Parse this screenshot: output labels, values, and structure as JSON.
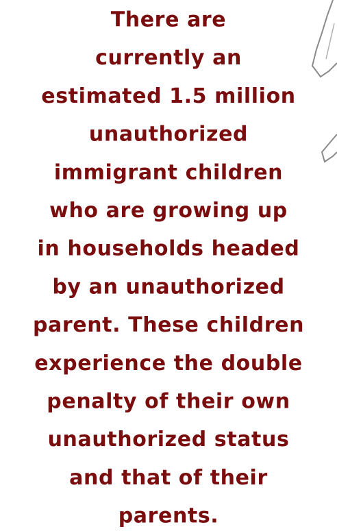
{
  "paragraph": {
    "lines": [
      "There are",
      "currently an",
      "estimated 1.5 million",
      "unauthorized",
      "immigrant children",
      "who are growing up",
      "in households headed",
      "by an unauthorized",
      "parent. These children",
      "experience the double",
      "penalty of their own",
      "unauthorized status",
      "and that of their",
      "parents."
    ]
  }
}
